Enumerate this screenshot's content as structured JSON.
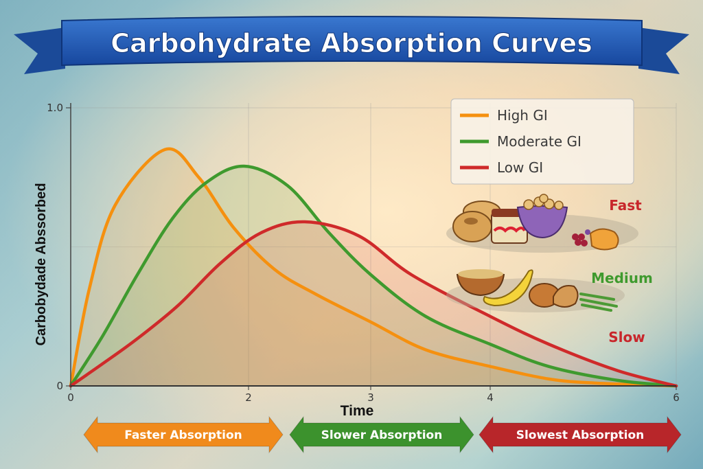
{
  "title": "Carbohydrate Absorption Curves",
  "chart_data": {
    "type": "line",
    "title": "Carbohydrate Absorption Curves",
    "xlabel": "Time",
    "ylabel": "Carbobydade Abssorbed",
    "x_ticks": [
      "0",
      "2",
      "3",
      "4",
      "6"
    ],
    "y_ticks": [
      "0",
      "1.0"
    ],
    "xlim": [
      0,
      6
    ],
    "ylim": [
      0,
      1.0
    ],
    "grid": true,
    "legend_placement": "top-right",
    "series": [
      {
        "name": "High GI",
        "color": "#f5900f",
        "x": [
          0,
          0.21,
          0.5,
          1.06,
          1.44,
          1.83,
          2.21,
          2.55,
          3.0,
          3.46,
          4.0,
          4.63,
          5.15,
          6.0
        ],
        "y": [
          0,
          0.35,
          0.65,
          0.85,
          0.75,
          0.57,
          0.42,
          0.33,
          0.23,
          0.13,
          0.07,
          0.025,
          0.01,
          0
        ]
      },
      {
        "name": "Moderate GI",
        "color": "#3f9a2e",
        "x": [
          0,
          0.36,
          0.75,
          1.14,
          1.52,
          1.95,
          2.32,
          2.66,
          3.0,
          3.46,
          4.0,
          4.63,
          5.37,
          6.0
        ],
        "y": [
          0,
          0.18,
          0.4,
          0.6,
          0.73,
          0.79,
          0.72,
          0.55,
          0.4,
          0.25,
          0.15,
          0.07,
          0.02,
          0
        ]
      },
      {
        "name": "Low GI",
        "color": "#cf2a2a",
        "x": [
          0,
          0.36,
          0.75,
          1.21,
          1.68,
          2.1,
          2.46,
          2.9,
          3.34,
          4.0,
          4.63,
          5.37,
          6.0
        ],
        "y": [
          0,
          0.08,
          0.17,
          0.29,
          0.44,
          0.55,
          0.59,
          0.54,
          0.4,
          0.25,
          0.15,
          0.055,
          0
        ]
      }
    ]
  },
  "speed_labels": [
    {
      "label": "Fast",
      "color": "#c8262b"
    },
    {
      "label": "Medium",
      "color": "#3f9a2e"
    },
    {
      "label": "Slow",
      "color": "#c8262b"
    }
  ],
  "arrows": [
    {
      "label": "Faster Absorption",
      "color": "#f08a1c"
    },
    {
      "label": "Slower Absorption",
      "color": "#3c922d"
    },
    {
      "label": "Slowest Absorption",
      "color": "#b8262a"
    }
  ],
  "food_groups": [
    "bagels-jar-cereal-berries-nugget-icon",
    "oatmeal-banana-bread-chicken-greenbeans-icon"
  ]
}
